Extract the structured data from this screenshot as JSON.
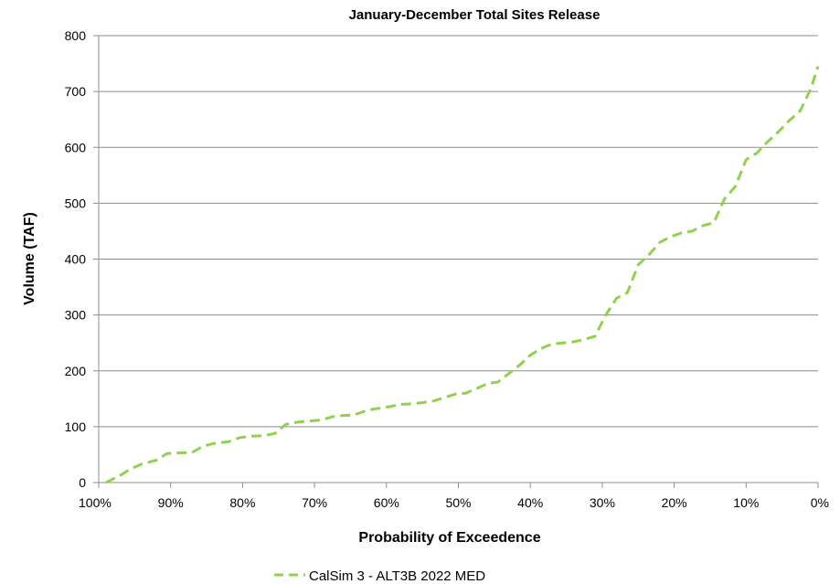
{
  "chart_data": {
    "type": "line",
    "title": "January-December Total Sites Release",
    "xlabel": "Probability of Exceedence",
    "ylabel": "Volume (TAF)",
    "xlim": [
      100,
      0
    ],
    "ylim": [
      0,
      800
    ],
    "x_ticks": [
      100,
      90,
      80,
      70,
      60,
      50,
      40,
      30,
      20,
      10,
      0
    ],
    "x_tick_labels": [
      "100%",
      "90%",
      "80%",
      "70%",
      "60%",
      "50%",
      "40%",
      "30%",
      "20%",
      "10%",
      "0%"
    ],
    "y_ticks": [
      0,
      100,
      200,
      300,
      400,
      500,
      600,
      700,
      800
    ],
    "y_tick_labels": [
      "0",
      "100",
      "200",
      "300",
      "400",
      "500",
      "600",
      "700",
      "800"
    ],
    "grid": "horizontal",
    "legend_position": "bottom-center",
    "series": [
      {
        "name": "CalSim 3 - ALT3B 2022 MED",
        "color": "#92d050",
        "line_style": "dashed",
        "x": [
          99,
          97,
          95.5,
          94,
          92,
          90.5,
          89,
          87,
          85.5,
          84,
          82,
          80.5,
          79,
          77,
          75.5,
          74,
          72.5,
          71,
          69,
          67.5,
          66,
          64.5,
          62.5,
          61,
          59.5,
          58,
          56.5,
          55,
          53.5,
          52,
          50.5,
          49,
          47.5,
          46,
          44.5,
          43,
          41.5,
          40,
          38.5,
          37,
          35.5,
          34,
          32.5,
          31,
          29.5,
          28,
          26.5,
          25,
          23.5,
          22,
          20.5,
          19,
          17.5,
          16,
          14.5,
          13,
          11.5,
          10,
          8.5,
          7,
          5.5,
          4,
          2.5,
          1,
          0
        ],
        "y": [
          0,
          13,
          25,
          33,
          40,
          52,
          53,
          54,
          65,
          70,
          73,
          80,
          83,
          84,
          88,
          104,
          108,
          110,
          112,
          118,
          120,
          121,
          130,
          133,
          136,
          140,
          141,
          143,
          146,
          152,
          158,
          160,
          168,
          177,
          180,
          195,
          210,
          228,
          240,
          248,
          250,
          252,
          256,
          262,
          300,
          330,
          340,
          390,
          408,
          430,
          440,
          447,
          450,
          460,
          465,
          508,
          530,
          578,
          590,
          610,
          628,
          648,
          665,
          705,
          745
        ]
      }
    ]
  }
}
